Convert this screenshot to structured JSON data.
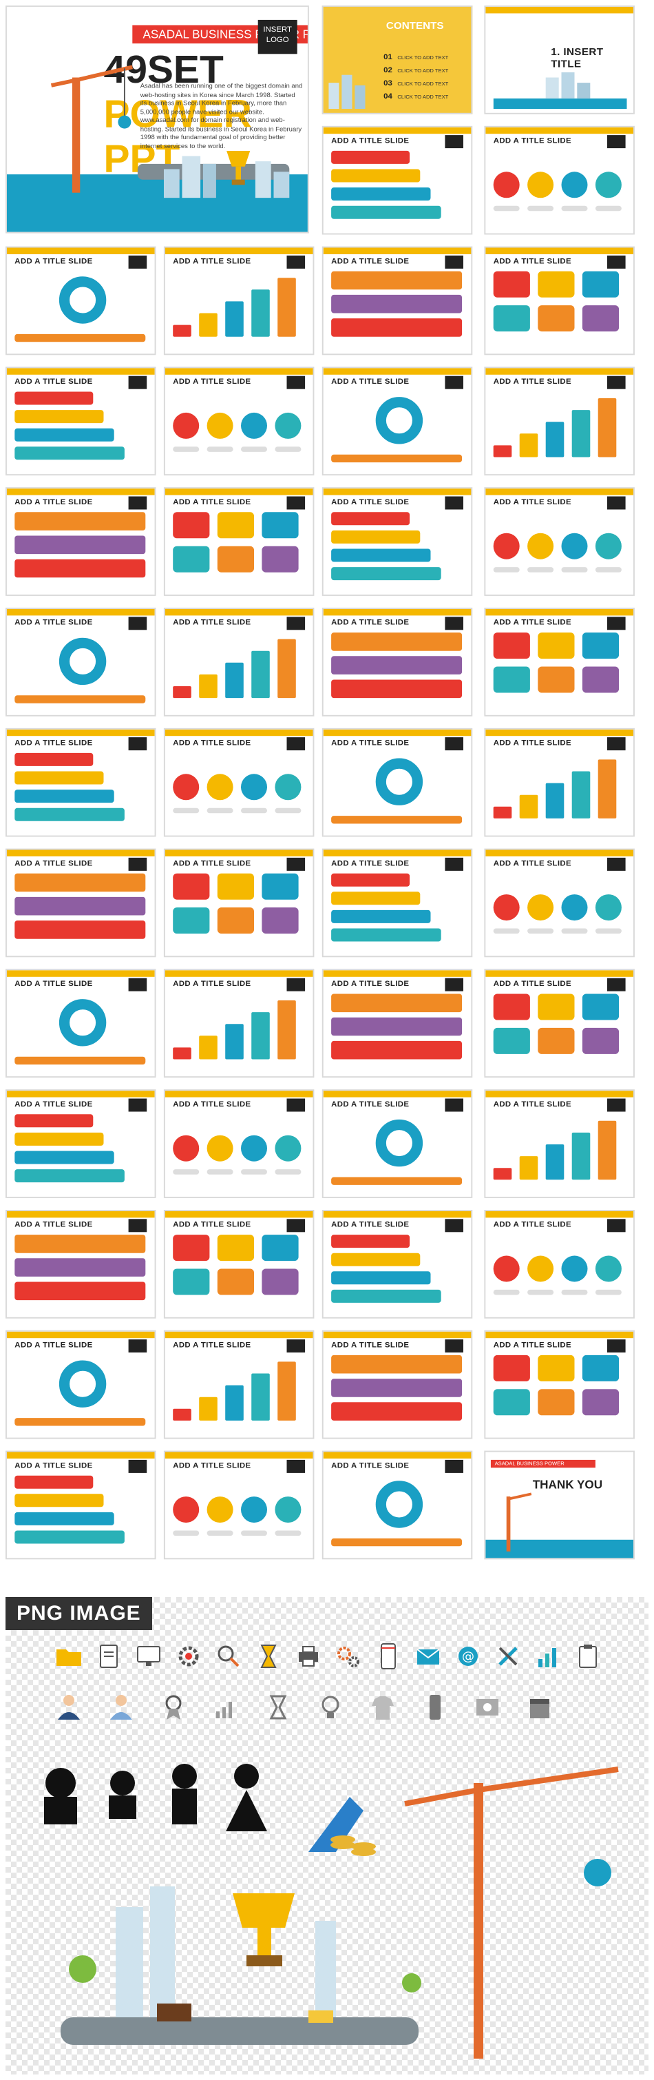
{
  "cover": {
    "ribbon": "ASADAL BUSINESS POWER PRESENTATION",
    "title_a": "49SET",
    "title_b": "POWER PPT",
    "insert_logo": "INSERT LOGO",
    "description": "Asadal has been running one of the biggest domain and web-hosting sites in Korea since March 1998. Started its business in Seoul Korea in February, more than 5,000,000 people have visited our website. www.asadal.com for domain registration and web-hosting. Started its business in Seoul Korea in February 1998 with the fundamental goal of providing better internet services to the world."
  },
  "contents": {
    "title": "CONTENTS",
    "items": [
      {
        "num": "01",
        "text": "CLICK TO ADD TEXT"
      },
      {
        "num": "02",
        "text": "CLICK TO ADD TEXT"
      },
      {
        "num": "03",
        "text": "CLICK TO ADD TEXT"
      },
      {
        "num": "04",
        "text": "CLICK TO ADD TEXT"
      }
    ]
  },
  "section_slide": {
    "title": "1. INSERT TITLE"
  },
  "slide_title": "ADD A TITLE SLIDE",
  "thanks": {
    "ribbon": "ASADAL BUSINESS POWER PRESENTATION",
    "title": "THANK YOU"
  },
  "png_heading": "PNG IMAGE",
  "colors": {
    "accent": "#f5b800",
    "red": "#e8382f",
    "blue": "#1a9fc4",
    "teal": "#2ab1b7",
    "dark": "#333333"
  },
  "icons": [
    "folder-icon",
    "document-icon",
    "monitor-icon",
    "gear-icon",
    "magnifier-icon",
    "hourglass-icon",
    "printer-icon",
    "cogs-icon",
    "tablet-icon",
    "mail-icon",
    "at-sign-icon",
    "tools-icon",
    "bar-chart-icon",
    "clipboard-icon"
  ]
}
